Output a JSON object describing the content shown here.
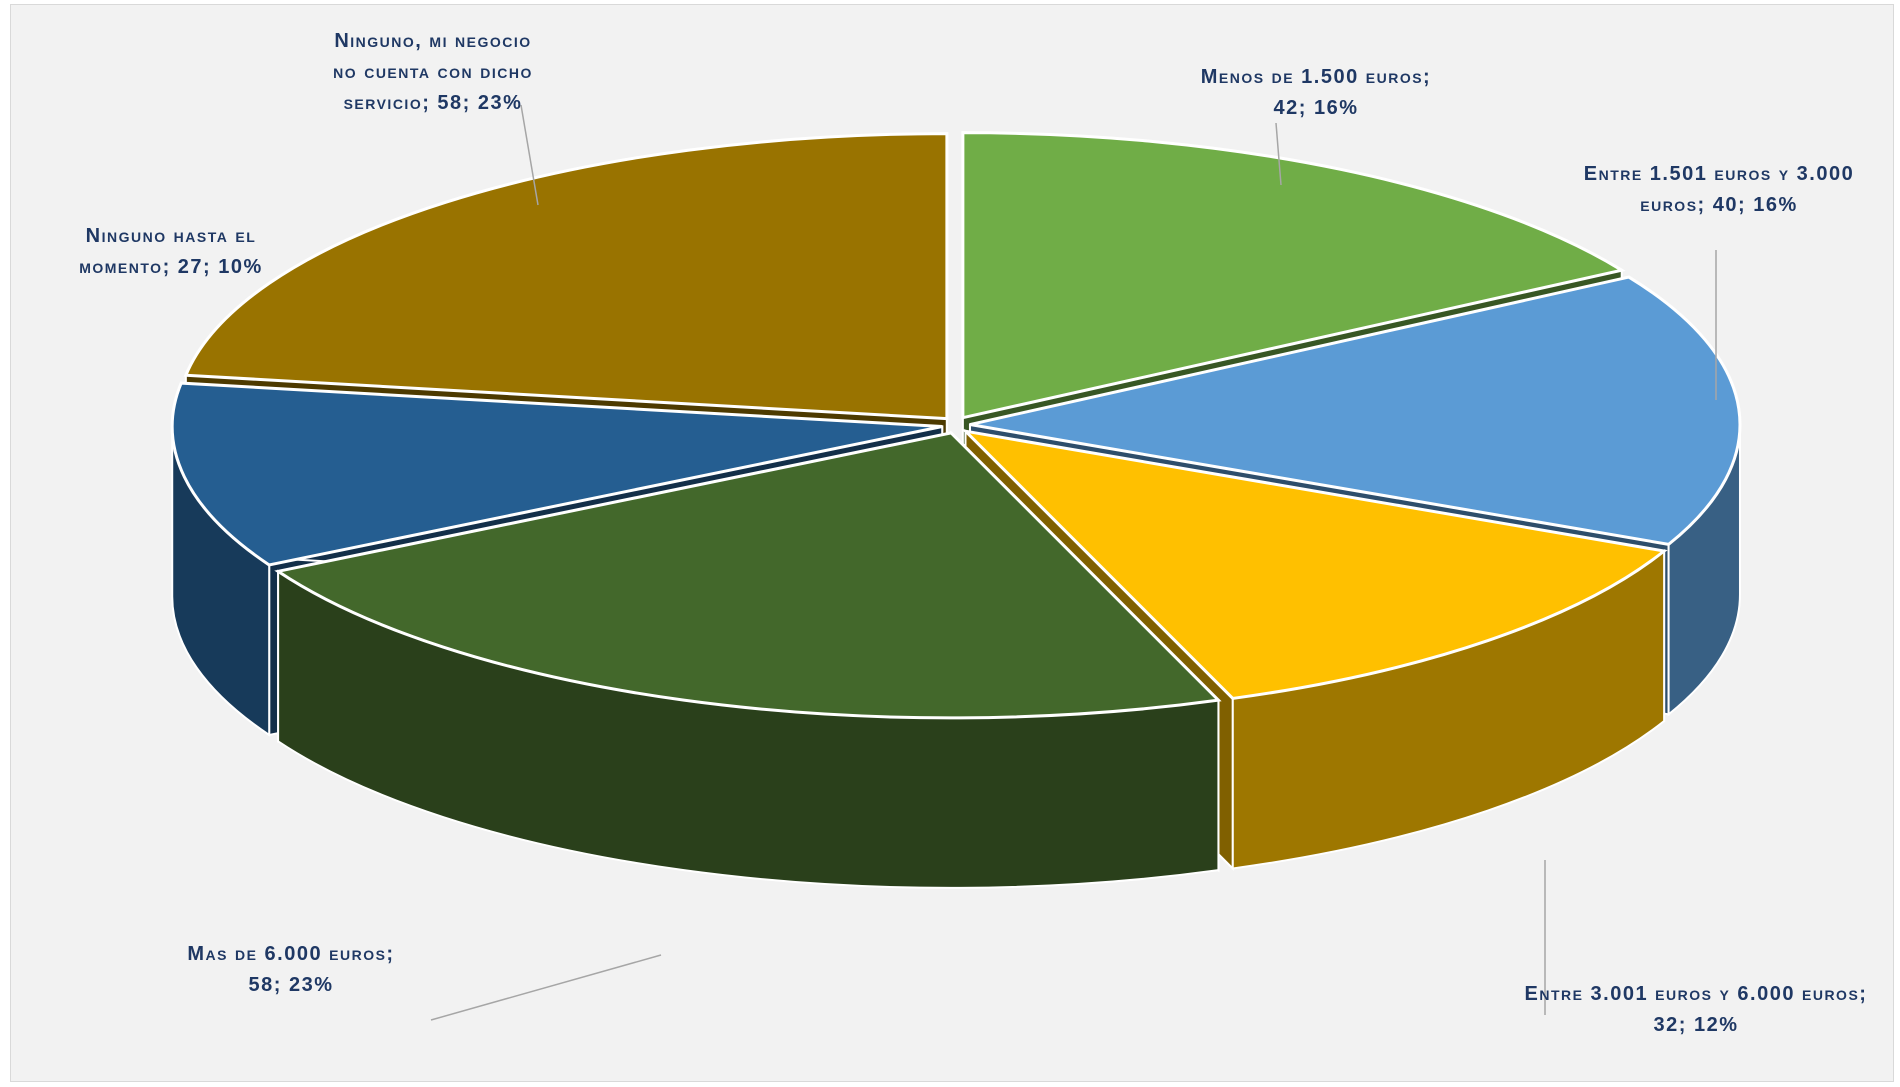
{
  "chart_data": {
    "type": "pie",
    "style": "3d-exploded",
    "legend": "none",
    "slices": [
      {
        "name": "Menos de 1.500 euros",
        "value": 42,
        "percent": "16%",
        "color": "#70ad47",
        "label_lines": [
          "Menos de 1.500 euros;",
          "42; 16%"
        ]
      },
      {
        "name": "Entre 1.501 euros y 3.000 euros",
        "value": 40,
        "percent": "16%",
        "color": "#5b9bd5",
        "label_lines": [
          "Entre 1.501 euros y 3.000",
          "euros; 40; 16%"
        ]
      },
      {
        "name": "Entre 3.001 euros y 6.000 euros",
        "value": 32,
        "percent": "12%",
        "color": "#ffc000",
        "label_lines": [
          "Entre 3.001 euros y 6.000 euros;",
          "32; 12%"
        ]
      },
      {
        "name": "Mas de 6.000 euros",
        "value": 58,
        "percent": "23%",
        "color": "#43682b",
        "label_lines": [
          "Mas de 6.000 euros;",
          "58; 23%"
        ]
      },
      {
        "name": "Ninguno hasta el momento",
        "value": 27,
        "percent": "10%",
        "color": "#255e91",
        "label_lines": [
          "Ninguno hasta el",
          "momento; 27; 10%"
        ]
      },
      {
        "name": "Ninguno, mi negocio no cuenta con dicho servicio",
        "value": 58,
        "percent": "23%",
        "color": "#997300",
        "label_lines": [
          "Ninguno, mi negocio",
          "no cuenta con dicho",
          "servicio; 58; 23%"
        ]
      }
    ]
  }
}
